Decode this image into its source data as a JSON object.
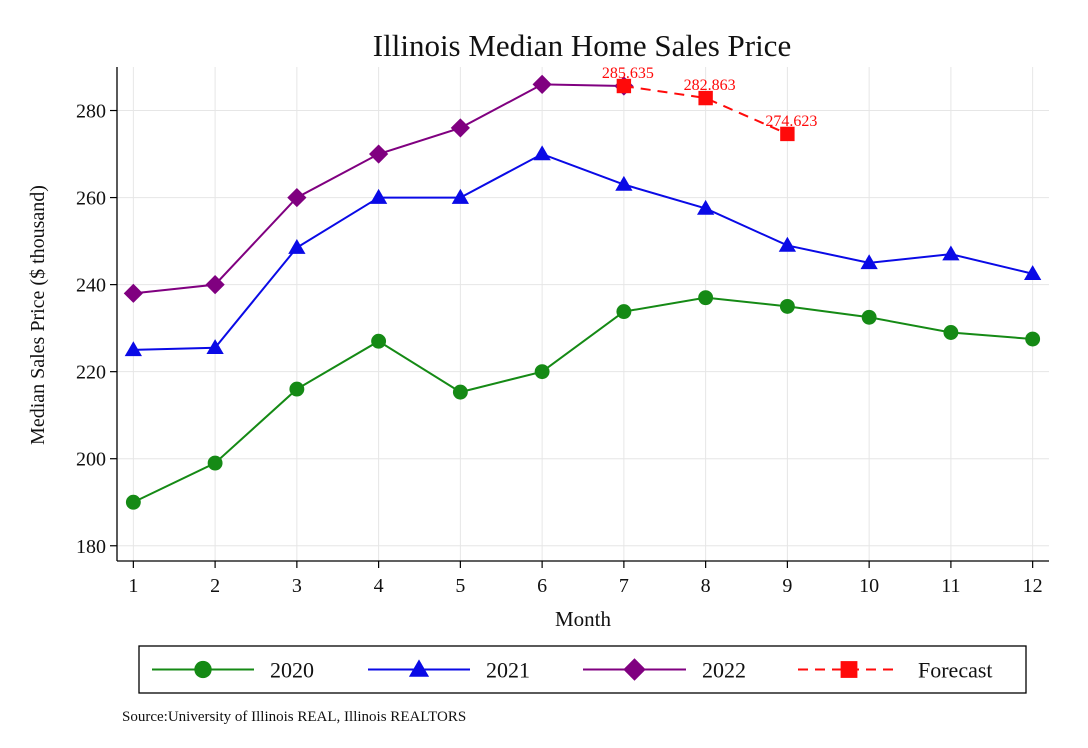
{
  "chart_data": {
    "type": "line",
    "title": "Illinois Median Home Sales Price",
    "xlabel": "Month",
    "ylabel": "Median Sales Price ($ thousand)",
    "x": [
      1,
      2,
      3,
      4,
      5,
      6,
      7,
      8,
      9,
      10,
      11,
      12
    ],
    "xlim": [
      0.8,
      12.2
    ],
    "ylim": [
      176.5,
      290
    ],
    "yticks": [
      180,
      200,
      220,
      240,
      260,
      280
    ],
    "grid": true,
    "legend_position": "bottom",
    "series": [
      {
        "name": "2020",
        "color": "#158a15",
        "marker": "circle",
        "dash": "solid",
        "x": [
          1,
          2,
          3,
          4,
          5,
          6,
          7,
          8,
          9,
          10,
          11,
          12
        ],
        "values": [
          190,
          199,
          216,
          227,
          215.3,
          220,
          233.8,
          237,
          235,
          232.5,
          229,
          227.5
        ]
      },
      {
        "name": "2021",
        "color": "#0a0ae6",
        "marker": "triangle",
        "dash": "solid",
        "x": [
          1,
          2,
          3,
          4,
          5,
          6,
          7,
          8,
          9,
          10,
          11,
          12
        ],
        "values": [
          225,
          225.5,
          248.5,
          260,
          260,
          270,
          263,
          257.5,
          249,
          245,
          247,
          242.5
        ]
      },
      {
        "name": "2022",
        "color": "#800080",
        "marker": "diamond",
        "dash": "solid",
        "x": [
          1,
          2,
          3,
          4,
          5,
          6,
          7
        ],
        "values": [
          238,
          240,
          260,
          270,
          276,
          286,
          285.635
        ]
      },
      {
        "name": "Forecast",
        "color": "#ff0a0a",
        "marker": "square",
        "dash": "dashed",
        "x": [
          7,
          8,
          9
        ],
        "values": [
          285.635,
          282.863,
          274.623
        ],
        "labels": [
          "285.635",
          "282.863",
          "274.623"
        ]
      }
    ]
  },
  "source_text": "Source:University of Illinois REAL, Illinois REALTORS"
}
